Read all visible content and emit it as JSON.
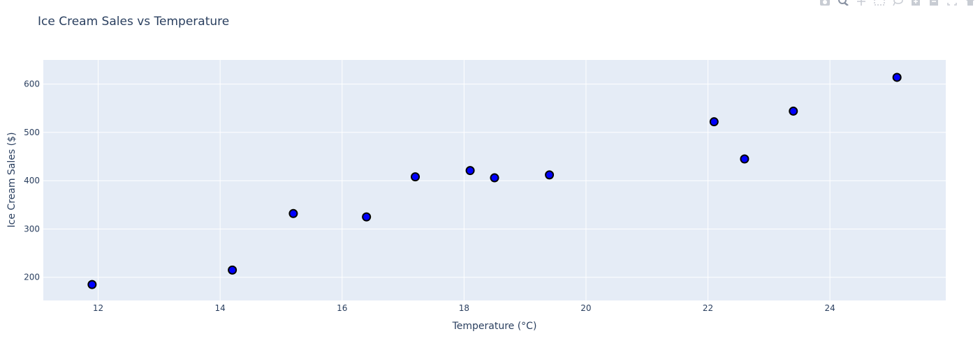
{
  "chart_data": {
    "type": "scatter",
    "title": "Ice Cream Sales vs Temperature",
    "xlabel": "Temperature (°C)",
    "ylabel": "Ice Cream Sales ($)",
    "xlim": [
      11.1,
      25.9
    ],
    "ylim": [
      152,
      650
    ],
    "xticks": [
      12,
      14,
      16,
      18,
      20,
      22,
      24
    ],
    "yticks": [
      200,
      300,
      400,
      500,
      600
    ],
    "grid": true,
    "legend": "none",
    "series": [
      {
        "marker_color": "#0000ff",
        "marker_line_color": "#000000",
        "points": [
          {
            "x": 11.9,
            "y": 185
          },
          {
            "x": 14.2,
            "y": 215
          },
          {
            "x": 15.2,
            "y": 332
          },
          {
            "x": 16.4,
            "y": 325
          },
          {
            "x": 17.2,
            "y": 408
          },
          {
            "x": 18.1,
            "y": 421
          },
          {
            "x": 18.5,
            "y": 406
          },
          {
            "x": 19.4,
            "y": 412
          },
          {
            "x": 22.1,
            "y": 522
          },
          {
            "x": 22.6,
            "y": 445
          },
          {
            "x": 23.4,
            "y": 544
          },
          {
            "x": 25.1,
            "y": 614
          }
        ]
      }
    ]
  },
  "colors": {
    "plot_background": "#e5ecf6",
    "grid": "#ffffff",
    "text": "#2a3f5f",
    "modebar_icon": "#c8ccd3"
  },
  "modebar": {
    "icons": [
      "camera-icon",
      "zoom-icon",
      "pan-icon",
      "box-select-icon",
      "lasso-select-icon",
      "zoom-in-icon",
      "zoom-out-icon",
      "autoscale-icon",
      "reset-axes-icon"
    ]
  }
}
